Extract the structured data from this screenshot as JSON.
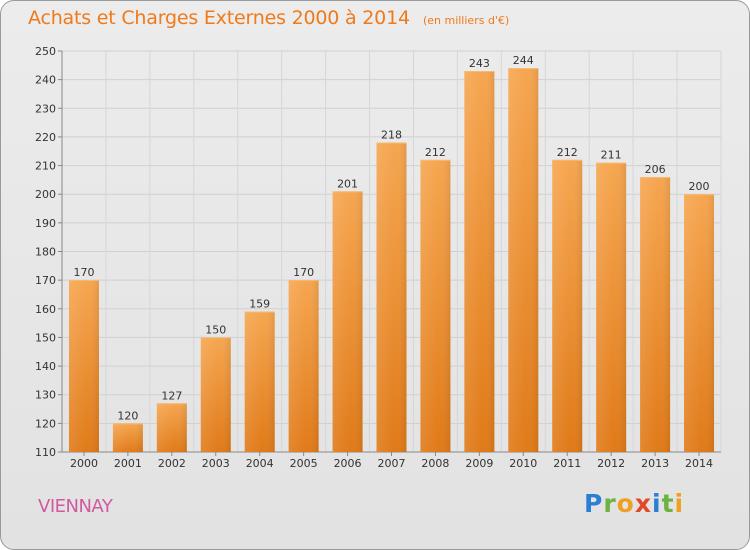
{
  "title": "Achats et Charges Externes 2000 à 2014",
  "unit": "(en milliers d'€)",
  "commune": "VIENNAY",
  "logo": {
    "letters": [
      "P",
      "r",
      "o",
      "x",
      "i",
      "t",
      "i"
    ],
    "colors": [
      "#2a7fd4",
      "#6cb33f",
      "#f0a020",
      "#e04a2a",
      "#2a7fd4",
      "#6cb33f",
      "#f0a020"
    ]
  },
  "colors": {
    "bar": "#f29a3c",
    "bar_dark": "#e07e1e",
    "title": "#f07a1a",
    "commune": "#d05aa0"
  },
  "chart_data": {
    "type": "bar",
    "categories": [
      "2000",
      "2001",
      "2002",
      "2003",
      "2004",
      "2005",
      "2006",
      "2007",
      "2008",
      "2009",
      "2010",
      "2011",
      "2012",
      "2013",
      "2014"
    ],
    "values": [
      170,
      120,
      127,
      150,
      159,
      170,
      201,
      218,
      212,
      243,
      244,
      212,
      211,
      206,
      200
    ],
    "ylim": [
      110,
      250
    ],
    "yticks": [
      110,
      120,
      130,
      140,
      150,
      160,
      170,
      180,
      190,
      200,
      210,
      220,
      230,
      240,
      250
    ],
    "title": "Achats et Charges Externes 2000 à 2014",
    "xlabel": "",
    "ylabel": "",
    "grid": true
  }
}
